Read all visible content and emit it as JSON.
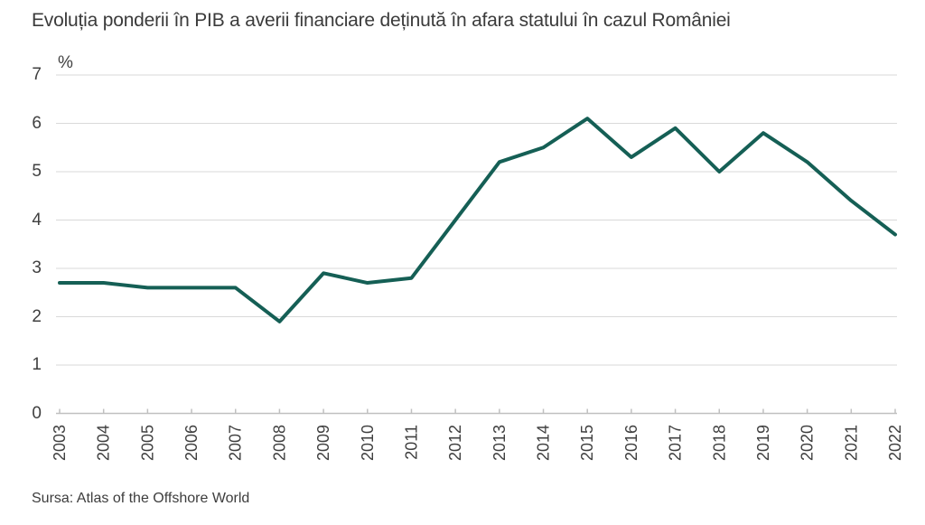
{
  "page": {
    "title": "Evoluția ponderii în PIB a averii financiare deținută în afara statului în cazul României",
    "source": "Sursa: Atlas of the Offshore World"
  },
  "chart_data": {
    "type": "line",
    "title": "Evoluția ponderii în PIB a averii financiare deținută în afara statului în cazul României",
    "unit_label": "%",
    "xlabel": "",
    "ylabel": "%",
    "categories": [
      "2003",
      "2004",
      "2005",
      "2006",
      "2007",
      "2008",
      "2009",
      "2010",
      "2011",
      "2012",
      "2013",
      "2014",
      "2015",
      "2016",
      "2017",
      "2018",
      "2019",
      "2020",
      "2021",
      "2022"
    ],
    "values": [
      2.7,
      2.7,
      2.6,
      2.6,
      2.6,
      1.9,
      2.9,
      2.7,
      2.8,
      4.0,
      5.2,
      5.5,
      6.1,
      5.3,
      5.9,
      5.0,
      5.8,
      5.2,
      4.4,
      3.7
    ],
    "ylim": [
      0,
      7
    ],
    "yticks": [
      0,
      1,
      2,
      3,
      4,
      5,
      6,
      7
    ],
    "grid": "horizontal",
    "legend": "none",
    "source": "Sursa: Atlas of the Offshore World",
    "colors": {
      "line": "#155f55",
      "gridline": "#d9d9d9",
      "axis": "#c0c0c0",
      "text": "#3b3b3b"
    }
  }
}
